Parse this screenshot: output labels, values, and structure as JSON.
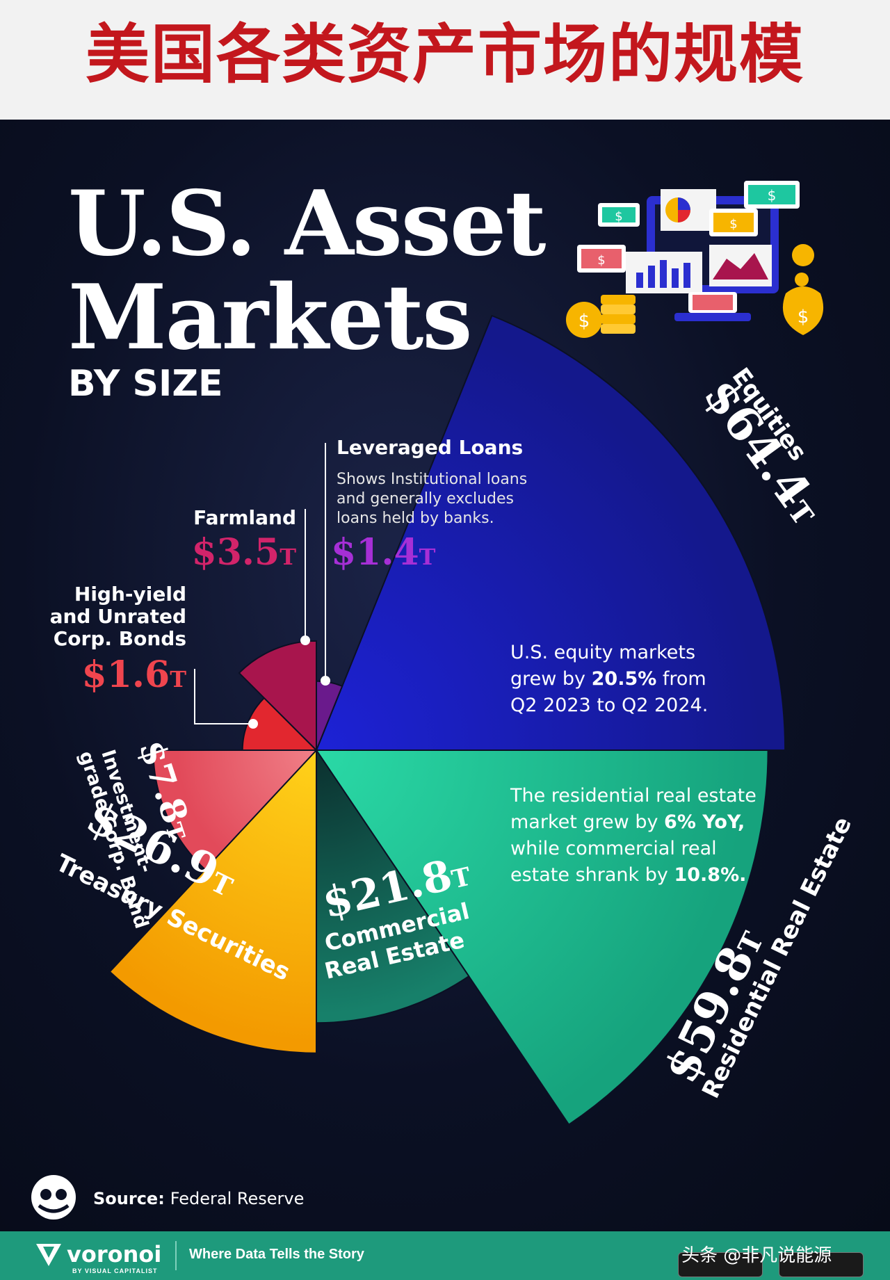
{
  "banner": {
    "title_cn": "美国各类资产市场的规模"
  },
  "header": {
    "title_line1": "U.S. Asset",
    "title_line2": "Markets",
    "subtitle": "BY SIZE"
  },
  "chart_data": {
    "type": "pie",
    "title": "U.S. Asset Markets",
    "subtitle": "BY SIZE",
    "unit": "T",
    "slices": [
      {
        "name": "Equities",
        "value": 64.4,
        "label": "$64.4",
        "unit": "T",
        "color": "#1a1fa8"
      },
      {
        "name": "Residential Real Estate",
        "value": 59.8,
        "label": "$59.8",
        "unit": "T",
        "color": "#22c494"
      },
      {
        "name": "Commercial Real Estate",
        "value": 21.8,
        "label": "$21.8",
        "unit": "T",
        "color": "#0f6e5a"
      },
      {
        "name": "Treasury Securities",
        "value": 26.9,
        "label": "$26.9",
        "unit": "T",
        "color": "#f7b500"
      },
      {
        "name": "Investment-grade Corp. Bond",
        "value": 7.8,
        "label": "$7.8",
        "unit": "T",
        "color": "#e8606c"
      },
      {
        "name": "High-yield and Unrated Corp. Bonds",
        "value": 1.6,
        "label": "$1.6",
        "unit": "T",
        "color": "#e2272f"
      },
      {
        "name": "Farmland",
        "value": 3.5,
        "label": "$3.5",
        "unit": "T",
        "color": "#a8154d"
      },
      {
        "name": "Leveraged Loans",
        "value": 1.4,
        "label": "$1.4",
        "unit": "T",
        "color": "#6a1a8c"
      }
    ]
  },
  "labels": {
    "equities": "Equities",
    "residential_l1": "Residential Real Estate",
    "commercial_l1": "Commercial",
    "commercial_l2": "Real Estate",
    "treasury": "Treasury Securities",
    "invgrade_l1": "Investment-",
    "invgrade_l2": "grade Corp. Bond",
    "highyield_l1": "High-yield",
    "highyield_l2": "and Unrated",
    "highyield_l3": "Corp. Bonds",
    "farmland": "Farmland",
    "leveraged": "Leveraged Loans",
    "leveraged_note_l1": "Shows Institutional loans",
    "leveraged_note_l2": "and generally excludes",
    "leveraged_note_l3": "loans held by banks."
  },
  "notes": {
    "equity_l1": "U.S. equity markets",
    "equity_l2a": "grew by ",
    "equity_l2b": "20.5%",
    "equity_l2c": " from",
    "equity_l3": "Q2 2023 to Q2 2024.",
    "re_l1": "The residential real estate",
    "re_l2a": "market grew by ",
    "re_l2b": "6% YoY,",
    "re_l3": "while commercial real",
    "re_l4a": "estate shrank by ",
    "re_l4b": "10.8%."
  },
  "source": {
    "label": "Source:",
    "value": "Federal Reserve"
  },
  "footer": {
    "brand": "voronoi",
    "brand_sub": "BY VISUAL CAPITALIST",
    "tagline": "Where Data Tells the Story",
    "watermark": "头条 @非凡说能源"
  },
  "colors": {
    "banner_title": "#c3171d",
    "background": "#0d1224",
    "footer": "#1e9a7c"
  }
}
